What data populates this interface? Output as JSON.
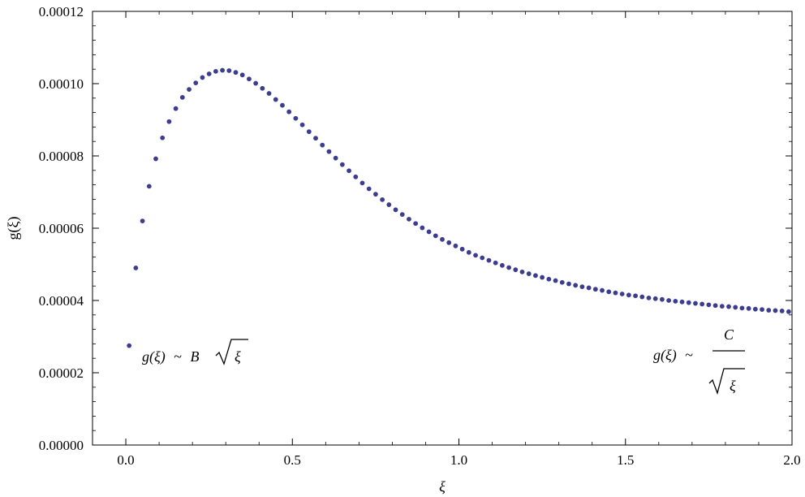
{
  "chart_data": {
    "type": "scatter",
    "title": "",
    "xlabel": "ξ",
    "ylabel": "g(ξ)",
    "xlim": [
      -0.1,
      2.0
    ],
    "ylim": [
      0,
      0.00012
    ],
    "grid": false,
    "point_color": "#3d3d8f",
    "x_ticks": [
      {
        "value": 0.0,
        "label": "0.0"
      },
      {
        "value": 0.5,
        "label": "0.5"
      },
      {
        "value": 1.0,
        "label": "1.0"
      },
      {
        "value": 1.5,
        "label": "1.5"
      },
      {
        "value": 2.0,
        "label": "2.0"
      }
    ],
    "y_ticks": [
      {
        "value": 0.0,
        "label": "0.00000"
      },
      {
        "value": 2e-05,
        "label": "0.00002"
      },
      {
        "value": 4e-05,
        "label": "0.00004"
      },
      {
        "value": 6e-05,
        "label": "0.00006"
      },
      {
        "value": 8e-05,
        "label": "0.00008"
      },
      {
        "value": 0.0001,
        "label": "0.00010"
      },
      {
        "value": 0.00012,
        "label": "0.00012"
      }
    ],
    "series": [
      {
        "points": [
          [
            0.01,
            2.75e-05
          ],
          [
            0.03,
            4.9e-05
          ],
          [
            0.05,
            6.2e-05
          ],
          [
            0.07,
            7.16e-05
          ],
          [
            0.09,
            7.92e-05
          ],
          [
            0.11,
            8.5e-05
          ],
          [
            0.13,
            8.95e-05
          ],
          [
            0.15,
            9.31e-05
          ],
          [
            0.17,
            9.62e-05
          ],
          [
            0.19,
            9.84e-05
          ],
          [
            0.21,
            0.0001002
          ],
          [
            0.23,
            0.0001017
          ],
          [
            0.25,
            0.0001027
          ],
          [
            0.27,
            0.0001034
          ],
          [
            0.29,
            0.0001037
          ],
          [
            0.31,
            0.0001036
          ],
          [
            0.33,
            0.0001031
          ],
          [
            0.35,
            0.0001024
          ],
          [
            0.37,
            0.0001013
          ],
          [
            0.39,
            0.0001001
          ],
          [
            0.41,
            9.87e-05
          ],
          [
            0.43,
            9.73e-05
          ],
          [
            0.45,
            9.56e-05
          ],
          [
            0.47,
            9.4e-05
          ],
          [
            0.49,
            9.22e-05
          ],
          [
            0.51,
            9.04e-05
          ],
          [
            0.53,
            8.86e-05
          ],
          [
            0.55,
            8.67e-05
          ],
          [
            0.57,
            8.49e-05
          ],
          [
            0.59,
            8.3e-05
          ],
          [
            0.61,
            8.12e-05
          ],
          [
            0.63,
            7.94e-05
          ],
          [
            0.65,
            7.76e-05
          ],
          [
            0.67,
            7.59e-05
          ],
          [
            0.69,
            7.42e-05
          ],
          [
            0.71,
            7.25e-05
          ],
          [
            0.73,
            7.09e-05
          ],
          [
            0.75,
            6.94e-05
          ],
          [
            0.77,
            6.79e-05
          ],
          [
            0.79,
            6.65e-05
          ],
          [
            0.81,
            6.51e-05
          ],
          [
            0.83,
            6.38e-05
          ],
          [
            0.85,
            6.25e-05
          ],
          [
            0.87,
            6.13e-05
          ],
          [
            0.89,
            6.01e-05
          ],
          [
            0.91,
            5.9e-05
          ],
          [
            0.93,
            5.79e-05
          ],
          [
            0.95,
            5.69e-05
          ],
          [
            0.97,
            5.6e-05
          ],
          [
            0.99,
            5.51e-05
          ],
          [
            1.01,
            5.42e-05
          ],
          [
            1.03,
            5.33e-05
          ],
          [
            1.05,
            5.25e-05
          ],
          [
            1.07,
            5.18e-05
          ],
          [
            1.09,
            5.11e-05
          ],
          [
            1.11,
            5.04e-05
          ],
          [
            1.13,
            4.97e-05
          ],
          [
            1.15,
            4.91e-05
          ],
          [
            1.17,
            4.85e-05
          ],
          [
            1.19,
            4.79e-05
          ],
          [
            1.21,
            4.74e-05
          ],
          [
            1.23,
            4.69e-05
          ],
          [
            1.25,
            4.64e-05
          ],
          [
            1.27,
            4.59e-05
          ],
          [
            1.29,
            4.55e-05
          ],
          [
            1.31,
            4.5e-05
          ],
          [
            1.33,
            4.46e-05
          ],
          [
            1.35,
            4.42e-05
          ],
          [
            1.37,
            4.38e-05
          ],
          [
            1.39,
            4.35e-05
          ],
          [
            1.41,
            4.31e-05
          ],
          [
            1.43,
            4.28e-05
          ],
          [
            1.45,
            4.24e-05
          ],
          [
            1.47,
            4.21e-05
          ],
          [
            1.49,
            4.18e-05
          ],
          [
            1.51,
            4.15e-05
          ],
          [
            1.53,
            4.13e-05
          ],
          [
            1.55,
            4.1e-05
          ],
          [
            1.57,
            4.07e-05
          ],
          [
            1.59,
            4.05e-05
          ],
          [
            1.61,
            4.03e-05
          ],
          [
            1.63,
            4e-05
          ],
          [
            1.65,
            3.98e-05
          ],
          [
            1.67,
            3.96e-05
          ],
          [
            1.69,
            3.94e-05
          ],
          [
            1.71,
            3.92e-05
          ],
          [
            1.73,
            3.9e-05
          ],
          [
            1.75,
            3.88e-05
          ],
          [
            1.77,
            3.86e-05
          ],
          [
            1.79,
            3.84e-05
          ],
          [
            1.81,
            3.83e-05
          ],
          [
            1.83,
            3.81e-05
          ],
          [
            1.85,
            3.79e-05
          ],
          [
            1.87,
            3.78e-05
          ],
          [
            1.89,
            3.76e-05
          ],
          [
            1.91,
            3.75e-05
          ],
          [
            1.93,
            3.73e-05
          ],
          [
            1.95,
            3.72e-05
          ],
          [
            1.97,
            3.71e-05
          ],
          [
            1.99,
            3.69e-05
          ]
        ]
      }
    ],
    "annotations": {
      "small_xi": {
        "lhs": "g(ξ)",
        "sim": "~",
        "coef": "B",
        "radicand": "ξ"
      },
      "large_xi": {
        "lhs": "g(ξ)",
        "sim": "~",
        "numerator": "C",
        "radicand": "ξ"
      }
    }
  }
}
